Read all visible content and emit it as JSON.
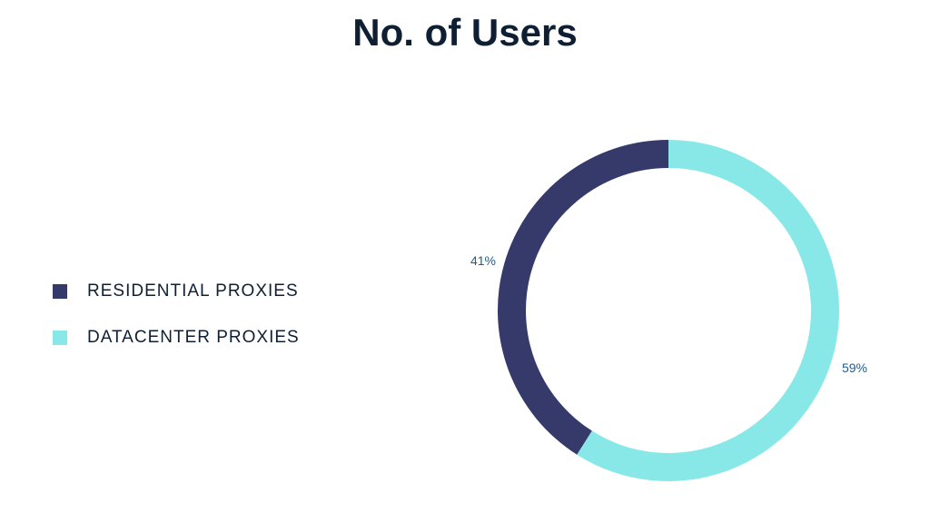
{
  "chart_data": {
    "type": "pie",
    "variant": "donut",
    "title": "No. of Users",
    "categories": [
      "RESIDENTIAL PROXIES",
      "DATACENTER PROXIES"
    ],
    "values": [
      41,
      59
    ],
    "data_labels": [
      "41%",
      "59%"
    ],
    "colors": [
      "#363a6b",
      "#88e8e8"
    ],
    "legend_position": "left"
  }
}
